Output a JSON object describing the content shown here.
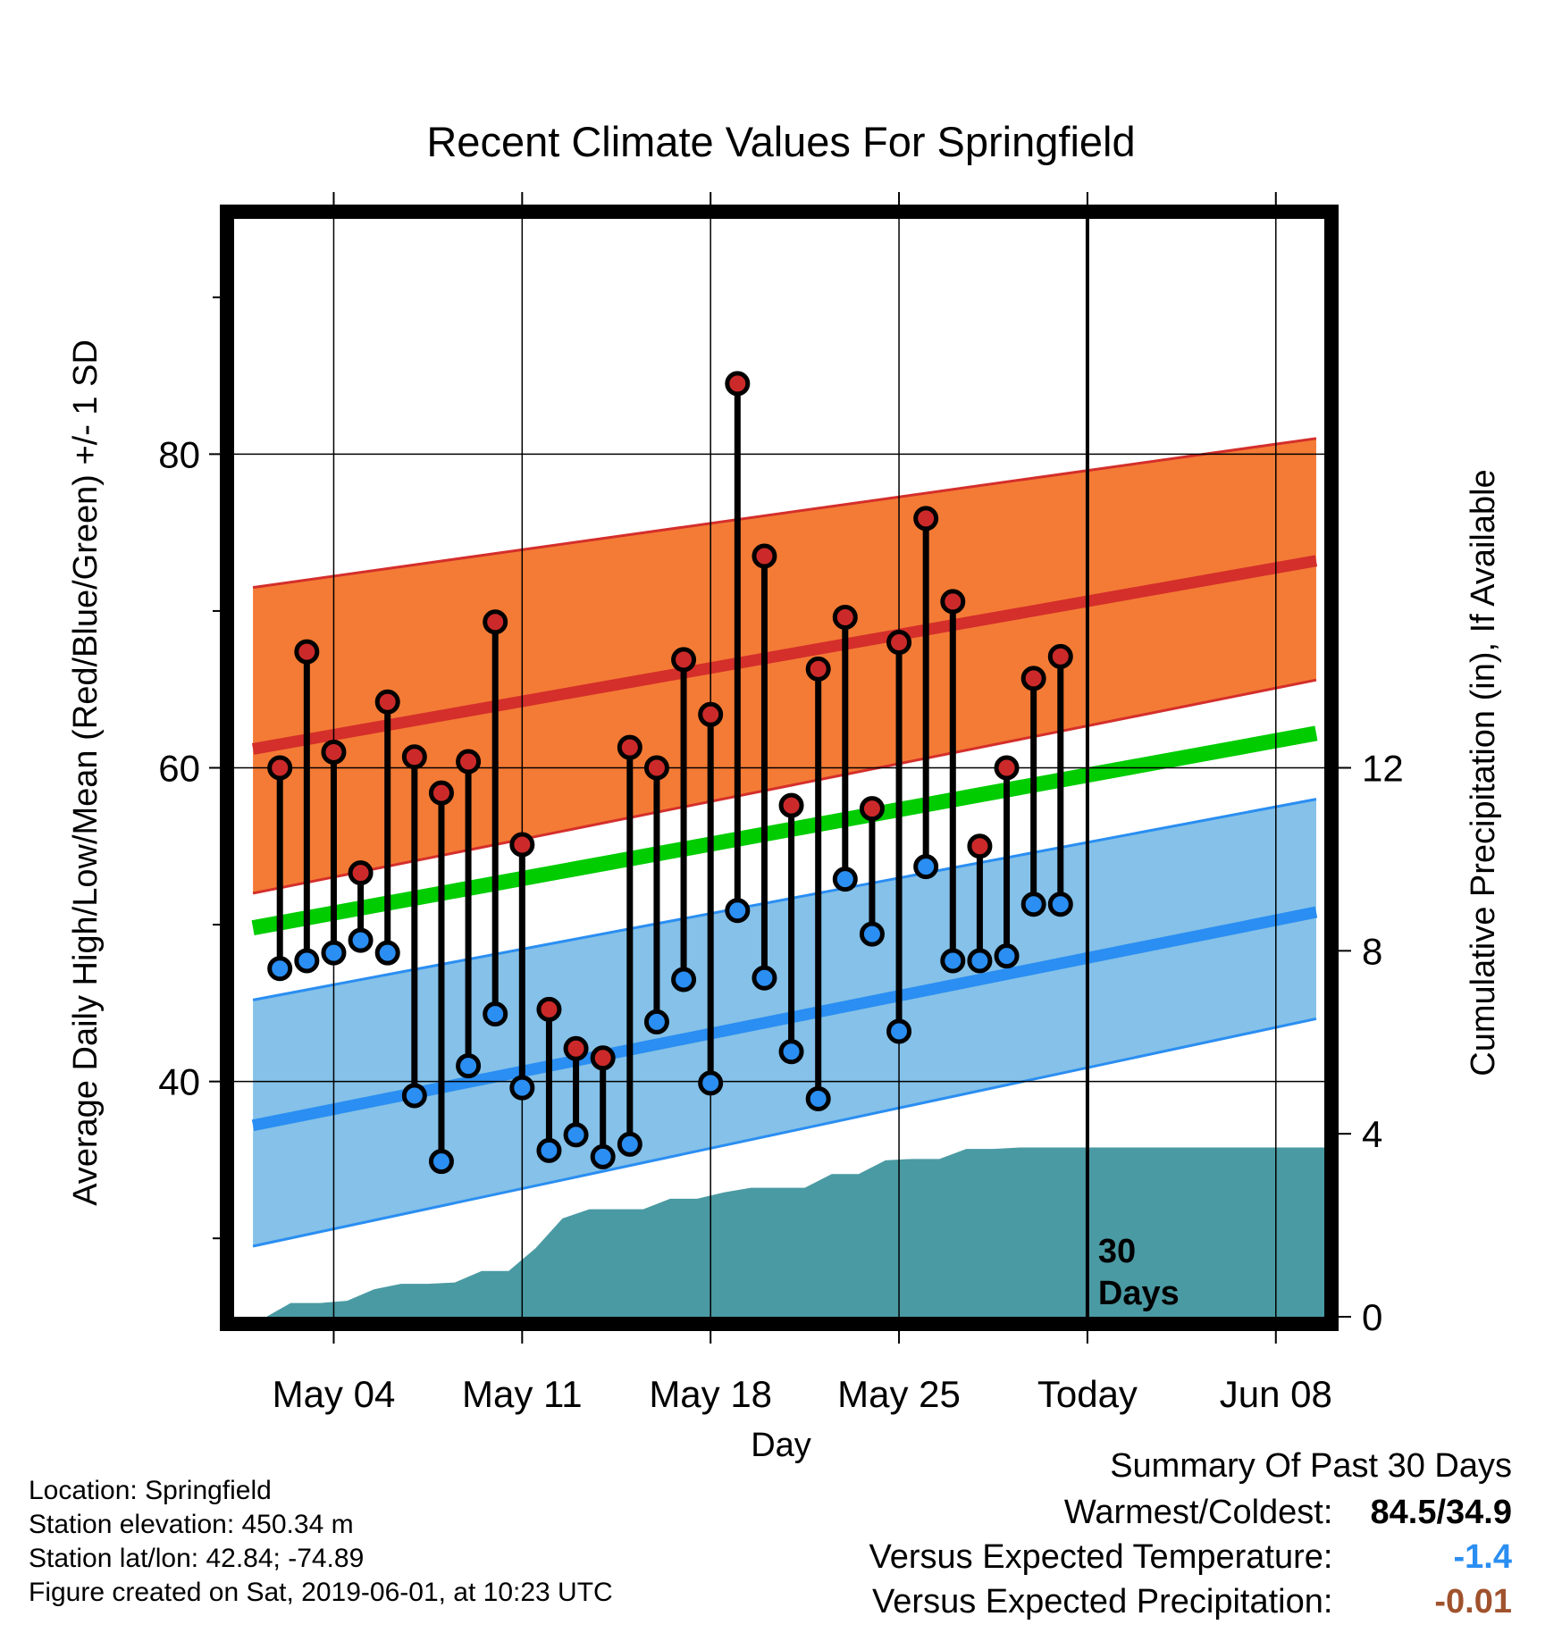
{
  "chart_data": {
    "type": "line",
    "title": "Recent Climate Values For Springfield",
    "xlabel": "Day",
    "ylabel_left": "Average Daily High/Low/Mean (Red/Blue/Green) +/- 1 SD",
    "ylabel_right": "Cumulative Precipitation (in), If Available",
    "x_tick_labels": [
      "May 04",
      "May 11",
      "May 18",
      "May 25",
      "Today",
      "Jun 08"
    ],
    "x_tick_days": [
      4,
      11,
      18,
      25,
      32,
      39
    ],
    "x_range": [
      0.3,
      40.8
    ],
    "today_day": 32,
    "today_marker_label_1": "30",
    "today_marker_label_2": "Days",
    "y_left_range": [
      25,
      95
    ],
    "y_left_ticks": [
      40,
      60,
      80
    ],
    "y_left_minor_ticks": [
      30,
      50,
      70,
      90
    ],
    "y_right_range": [
      0,
      24
    ],
    "y_right_ticks": [
      0,
      4,
      8,
      12
    ],
    "grid": true,
    "colors": {
      "high_band": "#f47b35",
      "high_line": "#d42f2b",
      "low_band": "#85c1e8",
      "low_line": "#2a8ef2",
      "mean_line": "#00cc00",
      "precip": "#4a9aa3",
      "high_point": "#cc2a2a",
      "low_point": "#2a8ef2"
    },
    "normals": {
      "days": [
        1,
        40.5
      ],
      "high_mean": [
        61.2,
        73.2
      ],
      "high_plus_sd": [
        71.5,
        81
      ],
      "high_minus_sd": [
        52,
        65.6
      ],
      "mean": [
        49.8,
        62.2
      ],
      "low_mean": [
        37.2,
        50.8
      ],
      "low_plus_sd": [
        45.2,
        58
      ],
      "low_minus_sd": [
        29.5,
        44
      ]
    },
    "series": [
      {
        "name": "High",
        "x": [
          2,
          3,
          4,
          5,
          6,
          7,
          8,
          9,
          10,
          11,
          12,
          13,
          14,
          15,
          16,
          17,
          18,
          19,
          20,
          21,
          22,
          23,
          24,
          25,
          26,
          27,
          28,
          29,
          30,
          31
        ],
        "values": [
          60,
          67.4,
          61,
          53.3,
          64.2,
          60.7,
          58.4,
          60.4,
          69.3,
          55.1,
          44.6,
          42.1,
          41.5,
          61.3,
          60,
          66.9,
          63.4,
          84.5,
          73.5,
          57.6,
          66.3,
          69.6,
          57.4,
          68,
          75.9,
          70.6,
          55,
          60,
          65.7,
          67.1
        ]
      },
      {
        "name": "Low",
        "x": [
          2,
          3,
          4,
          5,
          6,
          7,
          8,
          9,
          10,
          11,
          12,
          13,
          14,
          15,
          16,
          17,
          18,
          19,
          20,
          21,
          22,
          23,
          24,
          25,
          26,
          27,
          28,
          29,
          30,
          31
        ],
        "values": [
          47.2,
          47.7,
          48.2,
          49,
          48.2,
          39.1,
          34.9,
          41,
          44.3,
          39.6,
          35.6,
          36.6,
          35.2,
          36,
          43.8,
          46.5,
          39.9,
          50.9,
          46.6,
          41.9,
          38.9,
          52.9,
          49.4,
          43.2,
          53.7,
          47.7,
          47.7,
          48,
          51.3,
          51.3
        ]
      },
      {
        "name": "Cumulative Precipitation",
        "x": [
          1.5,
          2.4,
          3.5,
          4.5,
          5.5,
          6.5,
          7.5,
          8.5,
          9.5,
          10.5,
          11.5,
          12.5,
          13.5,
          14.5,
          15.5,
          16.5,
          17.5,
          18.5,
          19.5,
          20.5,
          21.5,
          22.5,
          23.5,
          24.5,
          25.5,
          26.5,
          27.5,
          28.5,
          29.5,
          30.5,
          31.5,
          40.8
        ],
        "values": [
          0,
          0.3,
          0.3,
          0.35,
          0.6,
          0.72,
          0.72,
          0.75,
          1.0,
          1.0,
          1.5,
          2.15,
          2.35,
          2.35,
          2.35,
          2.58,
          2.58,
          2.72,
          2.82,
          2.82,
          2.82,
          3.12,
          3.12,
          3.42,
          3.45,
          3.45,
          3.67,
          3.67,
          3.7,
          3.7,
          3.7,
          3.7
        ]
      }
    ]
  },
  "info": {
    "location": "Location: Springfield",
    "elevation": "Station elevation: 450.34 m",
    "latlon": "Station lat/lon: 42.84; -74.89",
    "created": "Figure created on Sat, 2019-06-01, at 10:23 UTC"
  },
  "summary": {
    "heading": "Summary Of Past 30 Days",
    "warmest_label": "Warmest/Coldest:",
    "warmest_value": "84.5/34.9",
    "temp_label": "Versus Expected Temperature:",
    "temp_value": "-1.4",
    "temp_color": "#2a8ef2",
    "precip_label": "Versus Expected Precipitation:",
    "precip_value": "-0.01",
    "precip_color": "#a0522d"
  }
}
